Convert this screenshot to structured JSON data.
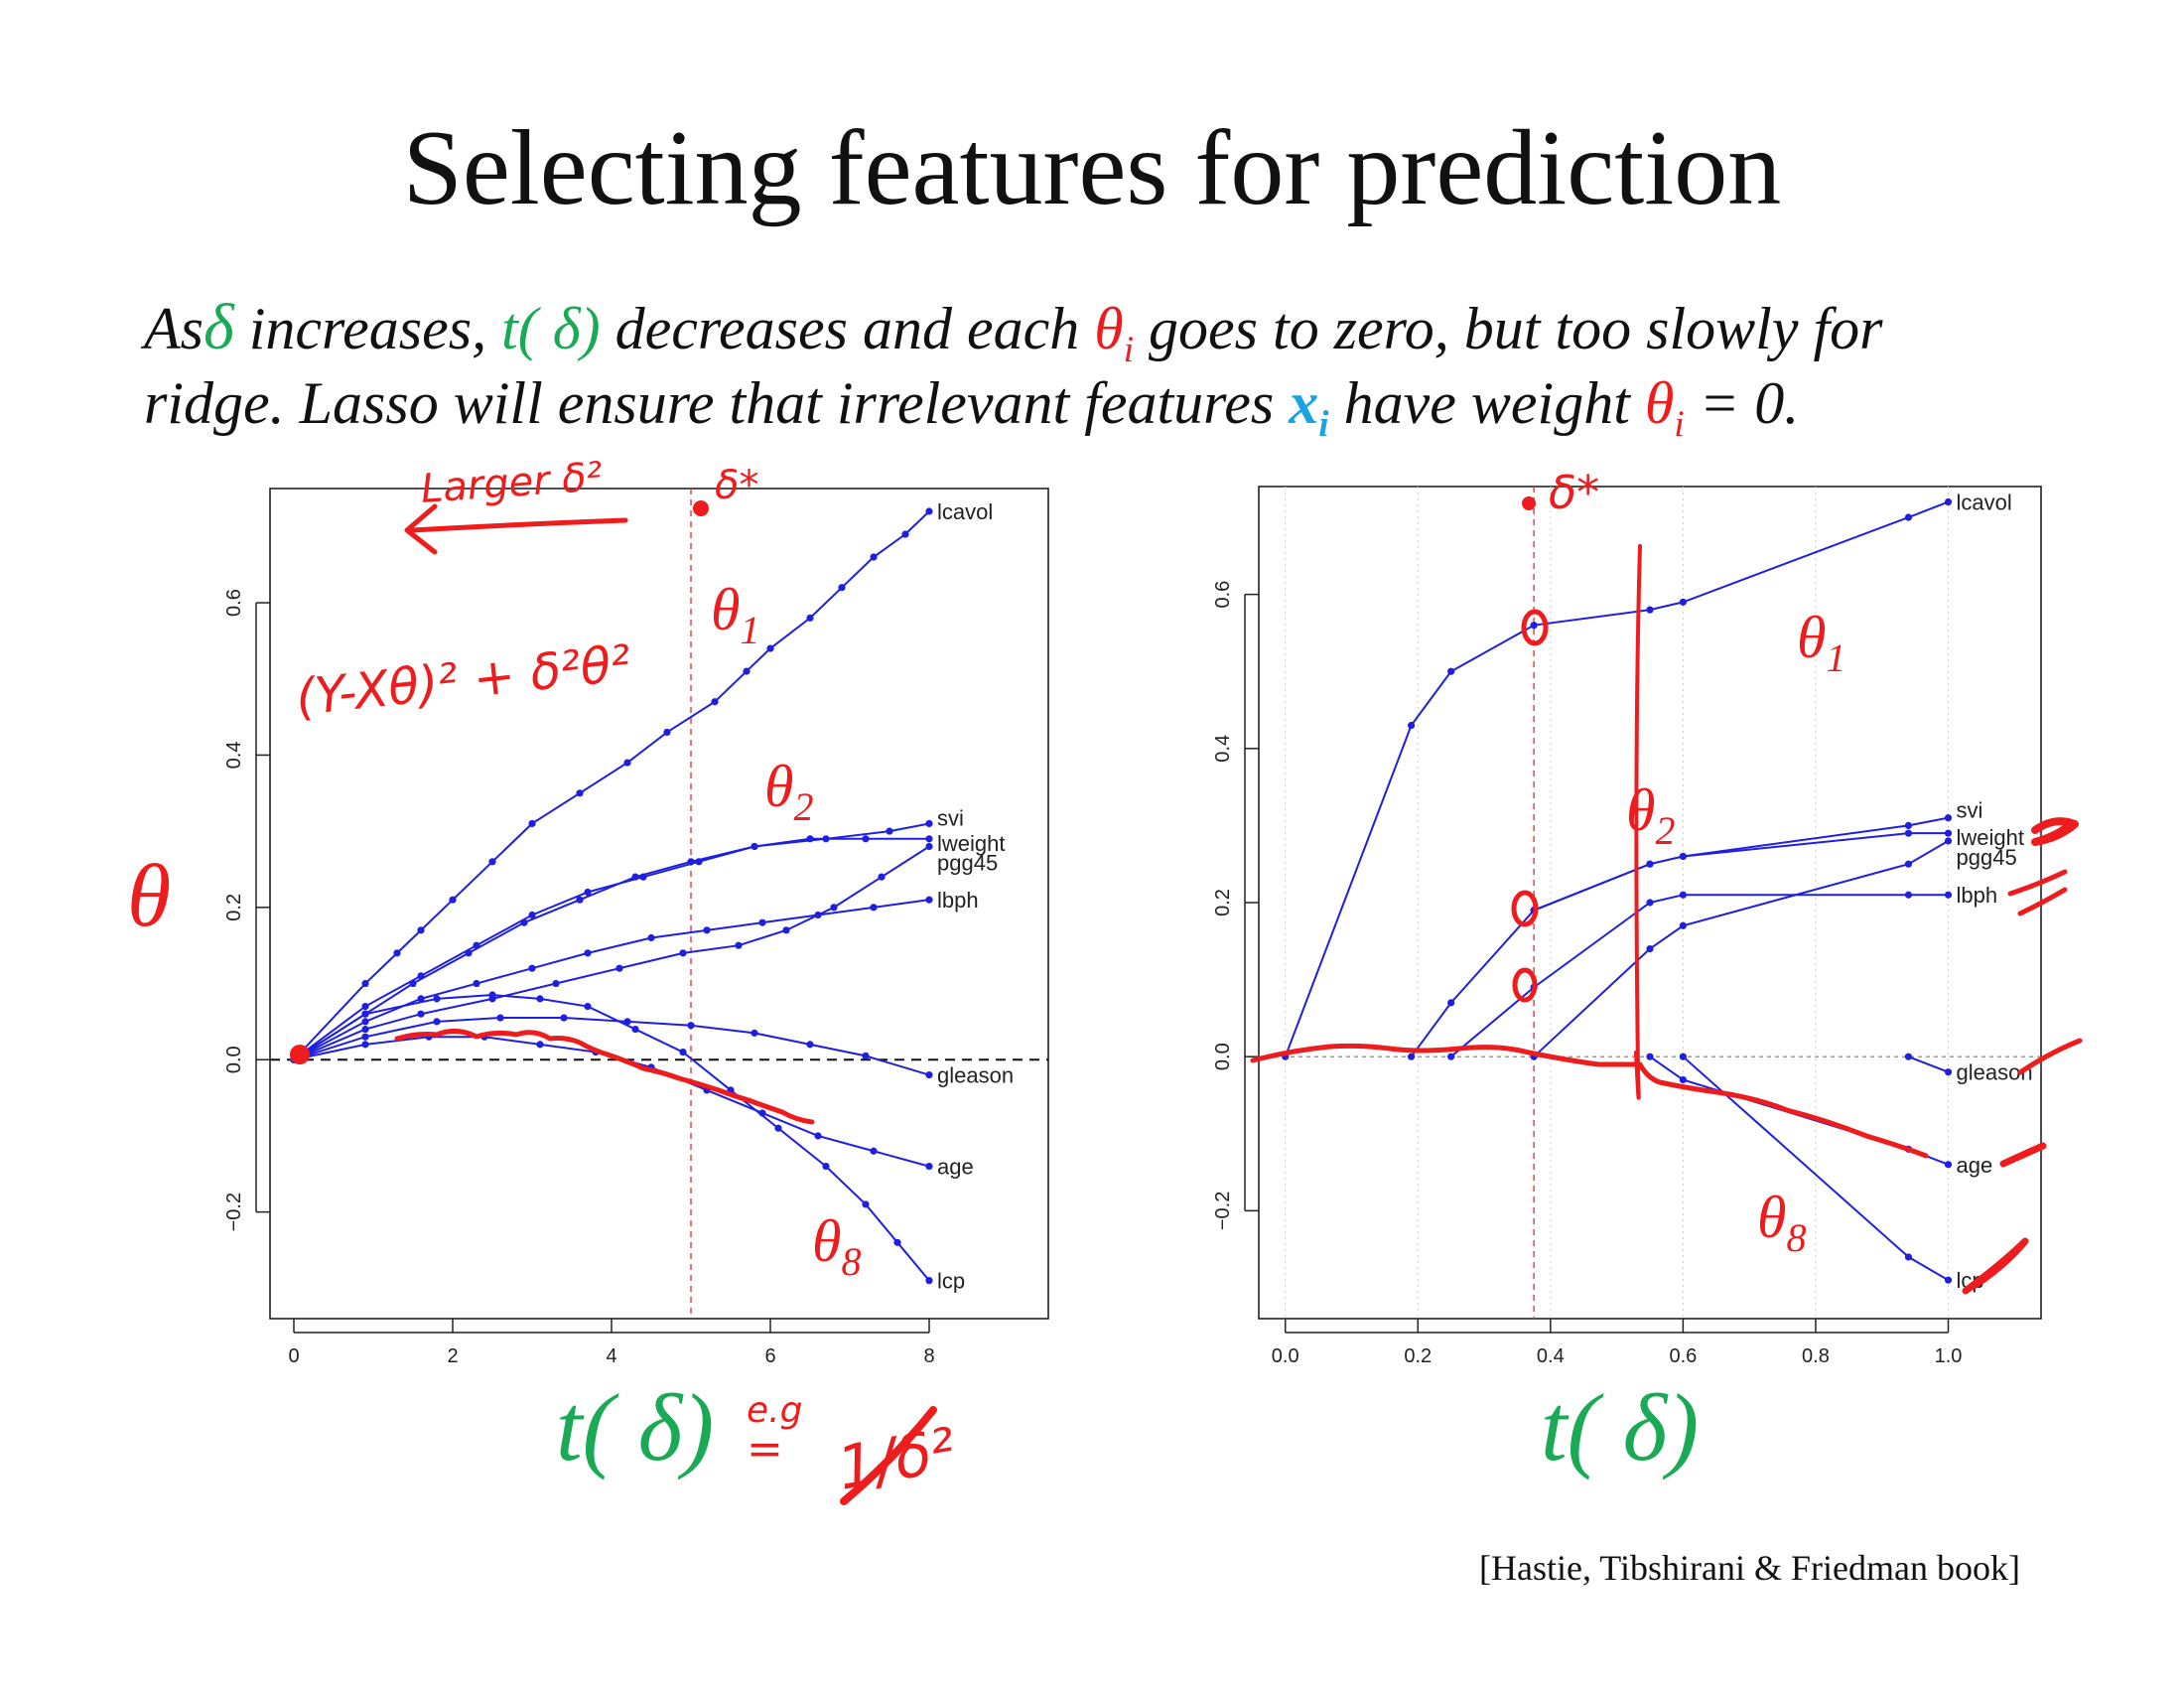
{
  "slide": {
    "title": "Selecting features for prediction",
    "line1": {
      "as": "As",
      "delta": "δ",
      "increases": " increases, ",
      "t_delta": "t( δ)",
      "decreases": " decreases and each ",
      "theta": "θ",
      "theta_sub": "i",
      "rest": " goes to zero, but too slowly for"
    },
    "line2": {
      "start": "ridge. Lasso will ensure that irrelevant features ",
      "x": "x",
      "x_sub": "i",
      "mid": " have weight ",
      "theta": "θ",
      "theta_sub": "i",
      "end": " = 0."
    },
    "citation": "[Hastie, Tibshirani & Friedman book]"
  },
  "annotations": {
    "theta_axis": "θ",
    "t_delta_label": "t( δ)",
    "theta1": "θ",
    "theta1_sub": "1",
    "theta2": "θ",
    "theta2_sub": "2",
    "theta8": "θ",
    "theta8_sub": "8",
    "handwritten_larger": "Larger δ²",
    "handwritten_delta_star": "δ*",
    "handwritten_formula": "(Y-Xθ)² + δ²θ²",
    "handwritten_eg": "e.g",
    "handwritten_eq": "=",
    "handwritten_inv": "1/δ²"
  },
  "colors": {
    "series": "#1f1fe0",
    "ink": "#ee1c1c",
    "green": "#1aaa55",
    "cyan": "#1aa3e0"
  },
  "chart_data": [
    {
      "type": "line",
      "title": "",
      "xlabel": "t( δ)",
      "ylabel": "θ",
      "xlim": [
        -0.3,
        9.5
      ],
      "ylim": [
        -0.34,
        0.75
      ],
      "xticks": [
        "0",
        "2",
        "4",
        "6",
        "8"
      ],
      "yticks": [
        "−0.2",
        "0.0",
        "0.2",
        "0.4",
        "0.6"
      ],
      "reference_x": 5,
      "series": [
        {
          "name": "lcavol",
          "x": [
            0,
            0.9,
            1.3,
            1.6,
            2,
            2.5,
            3.0,
            3.6,
            4.2,
            4.7,
            5.3,
            5.7,
            6.0,
            6.5,
            6.9,
            7.3,
            7.7,
            8
          ],
          "values": [
            0,
            0.1,
            0.14,
            0.17,
            0.21,
            0.26,
            0.31,
            0.35,
            0.39,
            0.43,
            0.47,
            0.51,
            0.54,
            0.58,
            0.62,
            0.66,
            0.69,
            0.72
          ]
        },
        {
          "name": "svi",
          "x": [
            0,
            0.9,
            1.5,
            2.2,
            2.9,
            3.6,
            4.3,
            5.0,
            5.8,
            6.7,
            7.5,
            8
          ],
          "values": [
            0,
            0.06,
            0.1,
            0.14,
            0.18,
            0.21,
            0.24,
            0.26,
            0.28,
            0.29,
            0.3,
            0.31
          ]
        },
        {
          "name": "lweight",
          "x": [
            0,
            0.9,
            1.6,
            2.3,
            3.0,
            3.7,
            4.4,
            5.1,
            5.8,
            6.5,
            7.2,
            8
          ],
          "values": [
            0,
            0.07,
            0.11,
            0.15,
            0.19,
            0.22,
            0.24,
            0.26,
            0.28,
            0.29,
            0.29,
            0.29
          ]
        },
        {
          "name": "pgg45",
          "x": [
            0,
            0.9,
            1.6,
            2.5,
            3.3,
            4.1,
            4.9,
            5.6,
            6.2,
            6.8,
            7.4,
            8
          ],
          "values": [
            0,
            0.04,
            0.06,
            0.08,
            0.1,
            0.12,
            0.14,
            0.15,
            0.17,
            0.2,
            0.24,
            0.28
          ]
        },
        {
          "name": "lbph",
          "x": [
            0,
            0.9,
            1.6,
            2.3,
            3.0,
            3.7,
            4.5,
            5.2,
            5.9,
            6.6,
            7.3,
            8
          ],
          "values": [
            0,
            0.05,
            0.08,
            0.1,
            0.12,
            0.14,
            0.16,
            0.17,
            0.18,
            0.19,
            0.2,
            0.21
          ]
        },
        {
          "name": "gleason",
          "x": [
            0,
            0.9,
            1.8,
            2.6,
            3.4,
            4.2,
            5.0,
            5.8,
            6.5,
            7.2,
            8
          ],
          "values": [
            0,
            0.03,
            0.05,
            0.055,
            0.055,
            0.05,
            0.045,
            0.035,
            0.02,
            0.005,
            -0.02
          ]
        },
        {
          "name": "age",
          "x": [
            0,
            0.9,
            1.7,
            2.4,
            3.1,
            3.8,
            4.5,
            5.2,
            5.9,
            6.6,
            7.3,
            8
          ],
          "values": [
            0,
            0.02,
            0.03,
            0.03,
            0.02,
            0.01,
            -0.01,
            -0.04,
            -0.07,
            -0.1,
            -0.12,
            -0.14
          ]
        },
        {
          "name": "lcp",
          "x": [
            0,
            0.9,
            1.8,
            2.5,
            3.1,
            3.7,
            4.3,
            4.9,
            5.5,
            6.1,
            6.7,
            7.2,
            7.6,
            8
          ],
          "values": [
            0,
            0.06,
            0.08,
            0.085,
            0.08,
            0.07,
            0.04,
            0.01,
            -0.04,
            -0.09,
            -0.14,
            -0.19,
            -0.24,
            -0.29
          ]
        }
      ]
    },
    {
      "type": "line",
      "title": "",
      "xlabel": "t( δ)",
      "ylabel": "",
      "xlim": [
        -0.04,
        1.14
      ],
      "ylim": [
        -0.34,
        0.74
      ],
      "xticks": [
        "0.0",
        "0.2",
        "0.4",
        "0.6",
        "0.8",
        "1.0"
      ],
      "yticks": [
        "−0.2",
        "0.0",
        "0.2",
        "0.4",
        "0.6"
      ],
      "reference_x": 0.375,
      "series": [
        {
          "name": "lcavol",
          "x": [
            0,
            0.19,
            0.25,
            0.375,
            0.55,
            0.6,
            0.94,
            1.0
          ],
          "values": [
            0,
            0.43,
            0.5,
            0.56,
            0.58,
            0.59,
            0.7,
            0.72
          ]
        },
        {
          "name": "svi",
          "x": [
            0.375,
            0.55,
            0.6,
            0.94,
            1.0
          ],
          "values": [
            0.19,
            0.25,
            0.26,
            0.3,
            0.31
          ]
        },
        {
          "name": "lweight",
          "x": [
            0.19,
            0.25,
            0.375,
            0.55,
            0.6,
            0.94,
            1.0
          ],
          "values": [
            0,
            0.07,
            0.19,
            0.25,
            0.26,
            0.29,
            0.29
          ]
        },
        {
          "name": "pgg45",
          "x": [
            0.375,
            0.55,
            0.6,
            0.94,
            1.0
          ],
          "values": [
            0,
            0.14,
            0.17,
            0.25,
            0.28
          ]
        },
        {
          "name": "lbph",
          "x": [
            0.25,
            0.375,
            0.55,
            0.6,
            0.94,
            1.0
          ],
          "values": [
            0,
            0.09,
            0.2,
            0.21,
            0.21,
            0.21
          ]
        },
        {
          "name": "gleason",
          "x": [
            0.94,
            1.0
          ],
          "values": [
            0,
            -0.02
          ]
        },
        {
          "name": "age",
          "x": [
            0.55,
            0.6,
            0.94,
            1.0
          ],
          "values": [
            0,
            -0.03,
            -0.12,
            -0.14
          ]
        },
        {
          "name": "lcp",
          "x": [
            0.6,
            0.94,
            1.0
          ],
          "values": [
            0,
            -0.26,
            -0.29
          ]
        }
      ]
    }
  ]
}
